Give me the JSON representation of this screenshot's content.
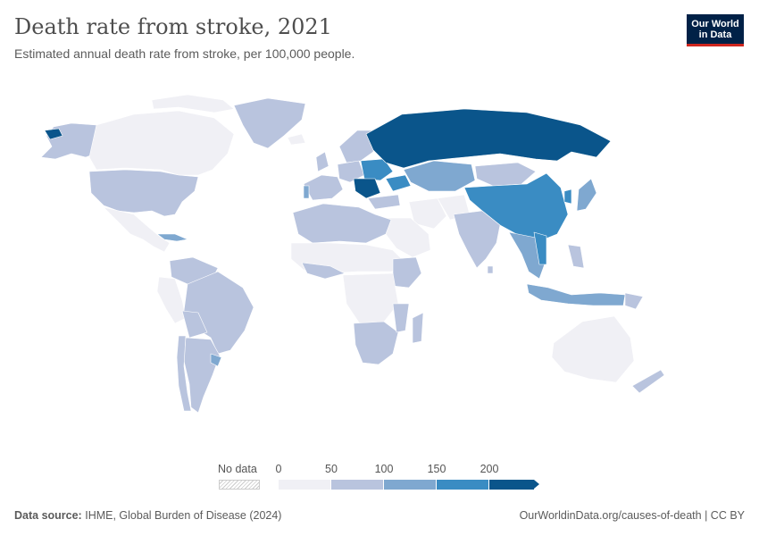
{
  "header": {
    "title": "Death rate from stroke, 2021",
    "subtitle": "Estimated annual death rate from stroke, per 100,000 people."
  },
  "logo": {
    "line1": "Our World",
    "line2": "in Data",
    "bg": "#002147",
    "accent": "#ce261e"
  },
  "legend": {
    "no_data_label": "No data",
    "ticks": [
      "0",
      "50",
      "100",
      "150",
      "200"
    ],
    "colors": [
      "#f0f0f5",
      "#b9c4de",
      "#7fa8d0",
      "#3a8cc3",
      "#0a558b"
    ]
  },
  "footer": {
    "source_label": "Data source:",
    "source_text": "IHME, Global Burden of Disease (2024)",
    "credit": "OurWorldinData.org/causes-of-death | CC BY"
  },
  "map": {
    "region_colors": {
      "low": "#f0f0f5",
      "mid1": "#b9c4de",
      "mid2": "#7fa8d0",
      "high": "#3a8cc3",
      "highest": "#0a558b",
      "border": "#ffffff"
    }
  }
}
